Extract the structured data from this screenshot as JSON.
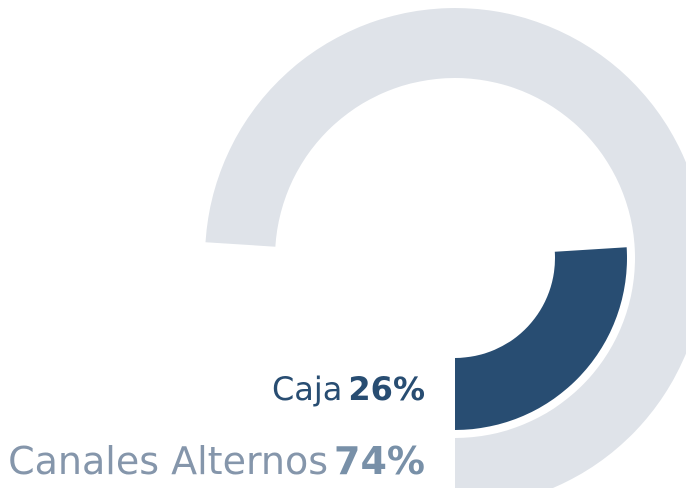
{
  "chart_data": {
    "type": "radial_bar",
    "series": [
      {
        "name": "Caja",
        "values": [
          26
        ],
        "value_labels": [
          "26%"
        ],
        "color": "#284d72"
      },
      {
        "name": "Canales Alternos",
        "values": [
          74
        ],
        "value_labels": [
          "74%"
        ],
        "color": "#dfe3e9"
      }
    ]
  }
}
